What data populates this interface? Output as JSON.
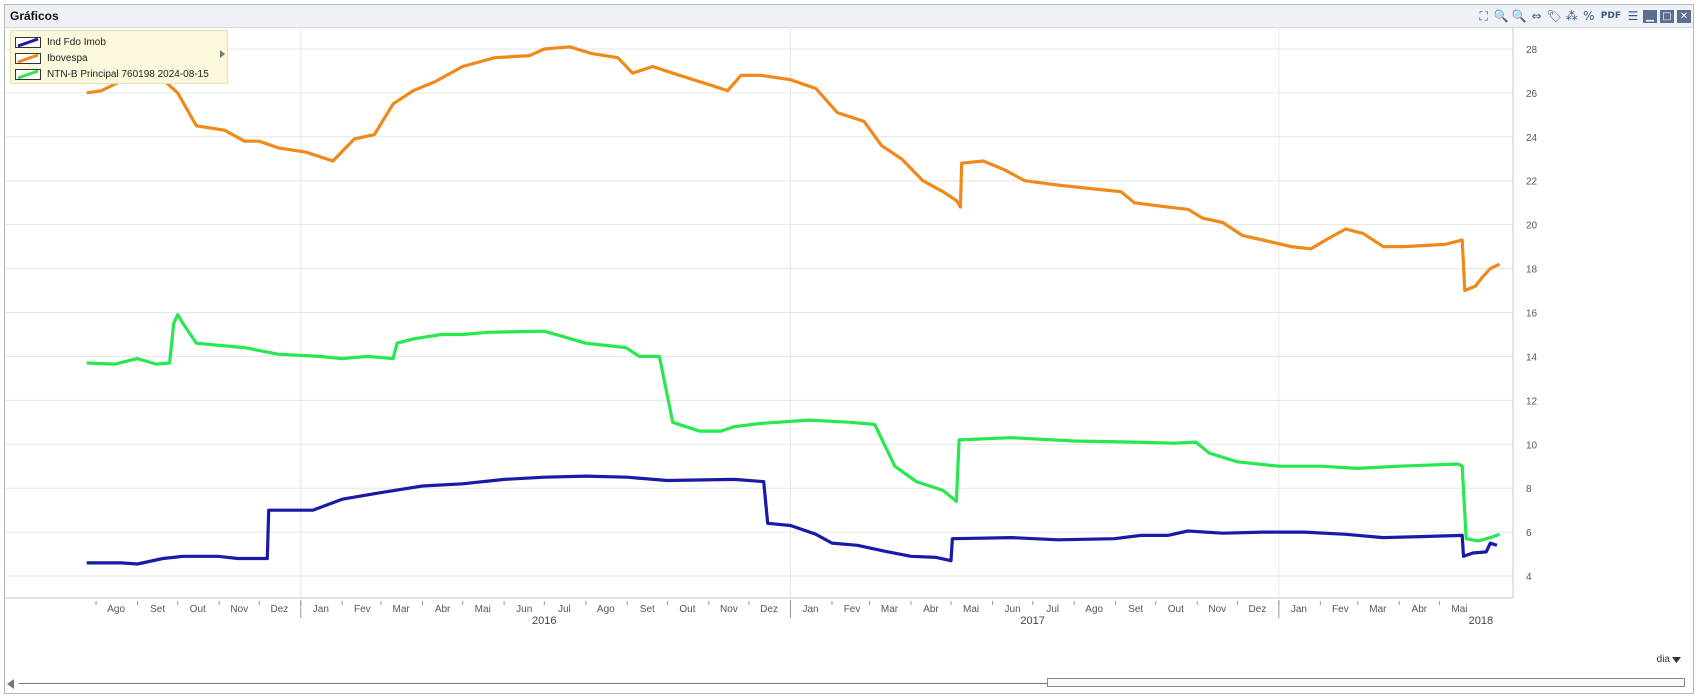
{
  "window": {
    "title": "Gráficos",
    "toolbar": [
      {
        "name": "expand-icon",
        "glyph": "⛶"
      },
      {
        "name": "zoom-in-icon",
        "glyph": "🔍"
      },
      {
        "name": "zoom-out-icon",
        "glyph": "🔍"
      },
      {
        "name": "pan-icon",
        "glyph": "⇔"
      },
      {
        "name": "tag-icon",
        "glyph": "🏷"
      },
      {
        "name": "chart-type-icon",
        "glyph": "⁂"
      },
      {
        "name": "percent-icon",
        "glyph": "%"
      },
      {
        "name": "pdf-icon",
        "glyph": "PDF"
      },
      {
        "name": "menu-icon",
        "glyph": "☰"
      },
      {
        "name": "minimize-icon",
        "glyph": "▁"
      },
      {
        "name": "maximize-icon",
        "glyph": "□"
      },
      {
        "name": "close-icon",
        "glyph": "✕"
      }
    ]
  },
  "chart_data": {
    "type": "line",
    "x_axis": {
      "unit": "date",
      "range": [
        "2015-07-20",
        "2018-06-25"
      ],
      "month_ticks": [
        {
          "label": "Ago",
          "date": "2015-08-01"
        },
        {
          "label": "Set",
          "date": "2015-09-01"
        },
        {
          "label": "Out",
          "date": "2015-10-01"
        },
        {
          "label": "Nov",
          "date": "2015-11-01"
        },
        {
          "label": "Dez",
          "date": "2015-12-01"
        },
        {
          "label": "Jan",
          "date": "2016-01-01"
        },
        {
          "label": "Fev",
          "date": "2016-02-01"
        },
        {
          "label": "Mar",
          "date": "2016-03-01"
        },
        {
          "label": "Abr",
          "date": "2016-04-01"
        },
        {
          "label": "Mai",
          "date": "2016-05-01"
        },
        {
          "label": "Jun",
          "date": "2016-06-01"
        },
        {
          "label": "Jul",
          "date": "2016-07-01"
        },
        {
          "label": "Ago",
          "date": "2016-08-01"
        },
        {
          "label": "Set",
          "date": "2016-09-01"
        },
        {
          "label": "Out",
          "date": "2016-10-01"
        },
        {
          "label": "Nov",
          "date": "2016-11-01"
        },
        {
          "label": "Dez",
          "date": "2016-12-01"
        },
        {
          "label": "Jan",
          "date": "2017-01-01"
        },
        {
          "label": "Fev",
          "date": "2017-02-01"
        },
        {
          "label": "Mar",
          "date": "2017-03-01"
        },
        {
          "label": "Abr",
          "date": "2017-04-01"
        },
        {
          "label": "Mai",
          "date": "2017-05-01"
        },
        {
          "label": "Jun",
          "date": "2017-06-01"
        },
        {
          "label": "Jul",
          "date": "2017-07-01"
        },
        {
          "label": "Ago",
          "date": "2017-08-01"
        },
        {
          "label": "Set",
          "date": "2017-09-01"
        },
        {
          "label": "Out",
          "date": "2017-10-01"
        },
        {
          "label": "Nov",
          "date": "2017-11-01"
        },
        {
          "label": "Dez",
          "date": "2017-12-01"
        },
        {
          "label": "Jan",
          "date": "2018-01-01"
        },
        {
          "label": "Fev",
          "date": "2018-02-01"
        },
        {
          "label": "Mar",
          "date": "2018-03-01"
        },
        {
          "label": "Abr",
          "date": "2018-04-01"
        },
        {
          "label": "Mai",
          "date": "2018-05-01"
        }
      ],
      "year_labels": [
        {
          "label": "2016",
          "date": "2016-07-01"
        },
        {
          "label": "2017",
          "date": "2017-07-01"
        },
        {
          "label": "2018",
          "date": "2018-06-01"
        }
      ],
      "year_dividers": [
        "2016-01-01",
        "2017-01-01",
        "2018-01-01"
      ]
    },
    "y_axis": {
      "position": "right",
      "ylim": [
        3,
        29
      ],
      "ticks": [
        4,
        6,
        8,
        10,
        12,
        14,
        16,
        18,
        20,
        22,
        24,
        26,
        28
      ]
    },
    "grid": true,
    "legend": "top-left",
    "series": [
      {
        "name": "Ind Fdo Imob",
        "color": "#1a1aa8",
        "points": [
          [
            "2015-07-25",
            4.6
          ],
          [
            "2015-08-20",
            4.6
          ],
          [
            "2015-09-01",
            4.55
          ],
          [
            "2015-09-20",
            4.8
          ],
          [
            "2015-10-05",
            4.9
          ],
          [
            "2015-10-31",
            4.9
          ],
          [
            "2015-11-15",
            4.8
          ],
          [
            "2015-12-07",
            4.8
          ],
          [
            "2015-12-08",
            7.0
          ],
          [
            "2016-01-10",
            7.0
          ],
          [
            "2016-02-01",
            7.5
          ],
          [
            "2016-03-01",
            7.8
          ],
          [
            "2016-04-01",
            8.1
          ],
          [
            "2016-05-01",
            8.2
          ],
          [
            "2016-06-01",
            8.4
          ],
          [
            "2016-07-01",
            8.5
          ],
          [
            "2016-08-01",
            8.55
          ],
          [
            "2016-09-01",
            8.5
          ],
          [
            "2016-10-01",
            8.35
          ],
          [
            "2016-11-20",
            8.4
          ],
          [
            "2016-12-12",
            8.3
          ],
          [
            "2016-12-15",
            6.4
          ],
          [
            "2017-01-01",
            6.3
          ],
          [
            "2017-01-20",
            5.9
          ],
          [
            "2017-02-01",
            5.5
          ],
          [
            "2017-02-20",
            5.4
          ],
          [
            "2017-03-15",
            5.1
          ],
          [
            "2017-04-01",
            4.9
          ],
          [
            "2017-04-20",
            4.85
          ],
          [
            "2017-05-01",
            4.7
          ],
          [
            "2017-05-02",
            5.7
          ],
          [
            "2017-06-15",
            5.75
          ],
          [
            "2017-07-20",
            5.65
          ],
          [
            "2017-08-31",
            5.7
          ],
          [
            "2017-09-20",
            5.85
          ],
          [
            "2017-10-10",
            5.85
          ],
          [
            "2017-10-25",
            6.05
          ],
          [
            "2017-11-20",
            5.95
          ],
          [
            "2017-12-20",
            6.0
          ],
          [
            "2018-01-20",
            6.0
          ],
          [
            "2018-02-20",
            5.9
          ],
          [
            "2018-03-20",
            5.75
          ],
          [
            "2018-04-20",
            5.8
          ],
          [
            "2018-05-18",
            5.85
          ],
          [
            "2018-05-19",
            4.9
          ],
          [
            "2018-05-26",
            5.05
          ],
          [
            "2018-06-05",
            5.1
          ],
          [
            "2018-06-08",
            5.5
          ],
          [
            "2018-06-13",
            5.4
          ]
        ]
      },
      {
        "name": "Ibovespa",
        "color": "#ef8a1a",
        "points": [
          [
            "2015-07-25",
            26.0
          ],
          [
            "2015-08-05",
            26.1
          ],
          [
            "2015-08-25",
            26.7
          ],
          [
            "2015-09-05",
            26.8
          ],
          [
            "2015-09-20",
            26.6
          ],
          [
            "2015-10-01",
            26.0
          ],
          [
            "2015-10-15",
            24.5
          ],
          [
            "2015-11-05",
            24.3
          ],
          [
            "2015-11-20",
            23.8
          ],
          [
            "2015-12-01",
            23.8
          ],
          [
            "2015-12-15",
            23.5
          ],
          [
            "2016-01-05",
            23.3
          ],
          [
            "2016-01-25",
            22.9
          ],
          [
            "2016-02-10",
            23.9
          ],
          [
            "2016-02-25",
            24.1
          ],
          [
            "2016-03-10",
            25.5
          ],
          [
            "2016-03-25",
            26.1
          ],
          [
            "2016-04-10",
            26.5
          ],
          [
            "2016-05-01",
            27.2
          ],
          [
            "2016-05-25",
            27.6
          ],
          [
            "2016-06-20",
            27.7
          ],
          [
            "2016-07-01",
            28.0
          ],
          [
            "2016-07-20",
            28.1
          ],
          [
            "2016-08-05",
            27.8
          ],
          [
            "2016-08-25",
            27.6
          ],
          [
            "2016-09-05",
            26.9
          ],
          [
            "2016-09-20",
            27.2
          ],
          [
            "2016-10-10",
            26.8
          ],
          [
            "2016-10-31",
            26.4
          ],
          [
            "2016-11-15",
            26.1
          ],
          [
            "2016-11-25",
            26.8
          ],
          [
            "2016-12-10",
            26.8
          ],
          [
            "2017-01-01",
            26.6
          ],
          [
            "2017-01-20",
            26.2
          ],
          [
            "2017-02-05",
            25.1
          ],
          [
            "2017-02-25",
            24.7
          ],
          [
            "2017-03-10",
            23.6
          ],
          [
            "2017-03-25",
            23.0
          ],
          [
            "2017-04-10",
            22.0
          ],
          [
            "2017-04-25",
            21.5
          ],
          [
            "2017-05-05",
            21.1
          ],
          [
            "2017-05-08",
            20.8
          ],
          [
            "2017-05-09",
            22.8
          ],
          [
            "2017-05-25",
            22.9
          ],
          [
            "2017-06-10",
            22.5
          ],
          [
            "2017-06-25",
            22.0
          ],
          [
            "2017-07-20",
            21.8
          ],
          [
            "2017-08-20",
            21.6
          ],
          [
            "2017-09-05",
            21.5
          ],
          [
            "2017-09-15",
            21.0
          ],
          [
            "2017-10-10",
            20.8
          ],
          [
            "2017-10-25",
            20.7
          ],
          [
            "2017-11-05",
            20.3
          ],
          [
            "2017-11-20",
            20.1
          ],
          [
            "2017-12-05",
            19.5
          ],
          [
            "2017-12-20",
            19.3
          ],
          [
            "2018-01-10",
            19.0
          ],
          [
            "2018-01-25",
            18.9
          ],
          [
            "2018-02-05",
            19.3
          ],
          [
            "2018-02-20",
            19.8
          ],
          [
            "2018-03-05",
            19.6
          ],
          [
            "2018-03-20",
            19.0
          ],
          [
            "2018-04-05",
            19.0
          ],
          [
            "2018-05-05",
            19.1
          ],
          [
            "2018-05-18",
            19.3
          ],
          [
            "2018-05-20",
            17.0
          ],
          [
            "2018-05-28",
            17.2
          ],
          [
            "2018-06-02",
            17.6
          ],
          [
            "2018-06-08",
            18.0
          ],
          [
            "2018-06-15",
            18.2
          ]
        ]
      },
      {
        "name": "NTN-B Principal 760198 2024-08-15",
        "color": "#27e84e",
        "points": [
          [
            "2015-07-25",
            13.7
          ],
          [
            "2015-08-15",
            13.65
          ],
          [
            "2015-09-01",
            13.9
          ],
          [
            "2015-09-15",
            13.65
          ],
          [
            "2015-09-25",
            13.7
          ],
          [
            "2015-09-28",
            15.5
          ],
          [
            "2015-10-01",
            15.9
          ],
          [
            "2015-10-05",
            15.5
          ],
          [
            "2015-10-15",
            14.6
          ],
          [
            "2015-11-01",
            14.5
          ],
          [
            "2015-11-20",
            14.4
          ],
          [
            "2015-12-15",
            14.1
          ],
          [
            "2016-01-15",
            14.0
          ],
          [
            "2016-02-01",
            13.9
          ],
          [
            "2016-02-20",
            14.0
          ],
          [
            "2016-03-10",
            13.9
          ],
          [
            "2016-03-13",
            14.6
          ],
          [
            "2016-03-25",
            14.8
          ],
          [
            "2016-04-15",
            15.0
          ],
          [
            "2016-05-01",
            15.0
          ],
          [
            "2016-05-20",
            15.1
          ],
          [
            "2016-07-01",
            15.15
          ],
          [
            "2016-08-01",
            14.6
          ],
          [
            "2016-08-31",
            14.4
          ],
          [
            "2016-09-10",
            14.0
          ],
          [
            "2016-09-25",
            14.0
          ],
          [
            "2016-10-05",
            11.0
          ],
          [
            "2016-10-25",
            10.6
          ],
          [
            "2016-11-10",
            10.6
          ],
          [
            "2016-11-20",
            10.8
          ],
          [
            "2016-12-10",
            10.95
          ],
          [
            "2017-01-15",
            11.1
          ],
          [
            "2017-02-15",
            11.0
          ],
          [
            "2017-03-05",
            10.9
          ],
          [
            "2017-03-20",
            9.0
          ],
          [
            "2017-04-05",
            8.3
          ],
          [
            "2017-04-25",
            7.9
          ],
          [
            "2017-05-05",
            7.4
          ],
          [
            "2017-05-07",
            10.2
          ],
          [
            "2017-06-15",
            10.3
          ],
          [
            "2017-08-01",
            10.15
          ],
          [
            "2017-09-15",
            10.1
          ],
          [
            "2017-10-15",
            10.05
          ],
          [
            "2017-10-31",
            10.1
          ],
          [
            "2017-11-10",
            9.6
          ],
          [
            "2017-12-01",
            9.2
          ],
          [
            "2018-01-01",
            9.0
          ],
          [
            "2018-02-01",
            9.0
          ],
          [
            "2018-03-01",
            8.9
          ],
          [
            "2018-04-01",
            9.0
          ],
          [
            "2018-05-15",
            9.1
          ],
          [
            "2018-05-18",
            9.0
          ],
          [
            "2018-05-21",
            5.7
          ],
          [
            "2018-05-30",
            5.6
          ],
          [
            "2018-06-08",
            5.75
          ],
          [
            "2018-06-15",
            5.9
          ]
        ]
      }
    ]
  },
  "period_selector": {
    "label": "dia"
  }
}
